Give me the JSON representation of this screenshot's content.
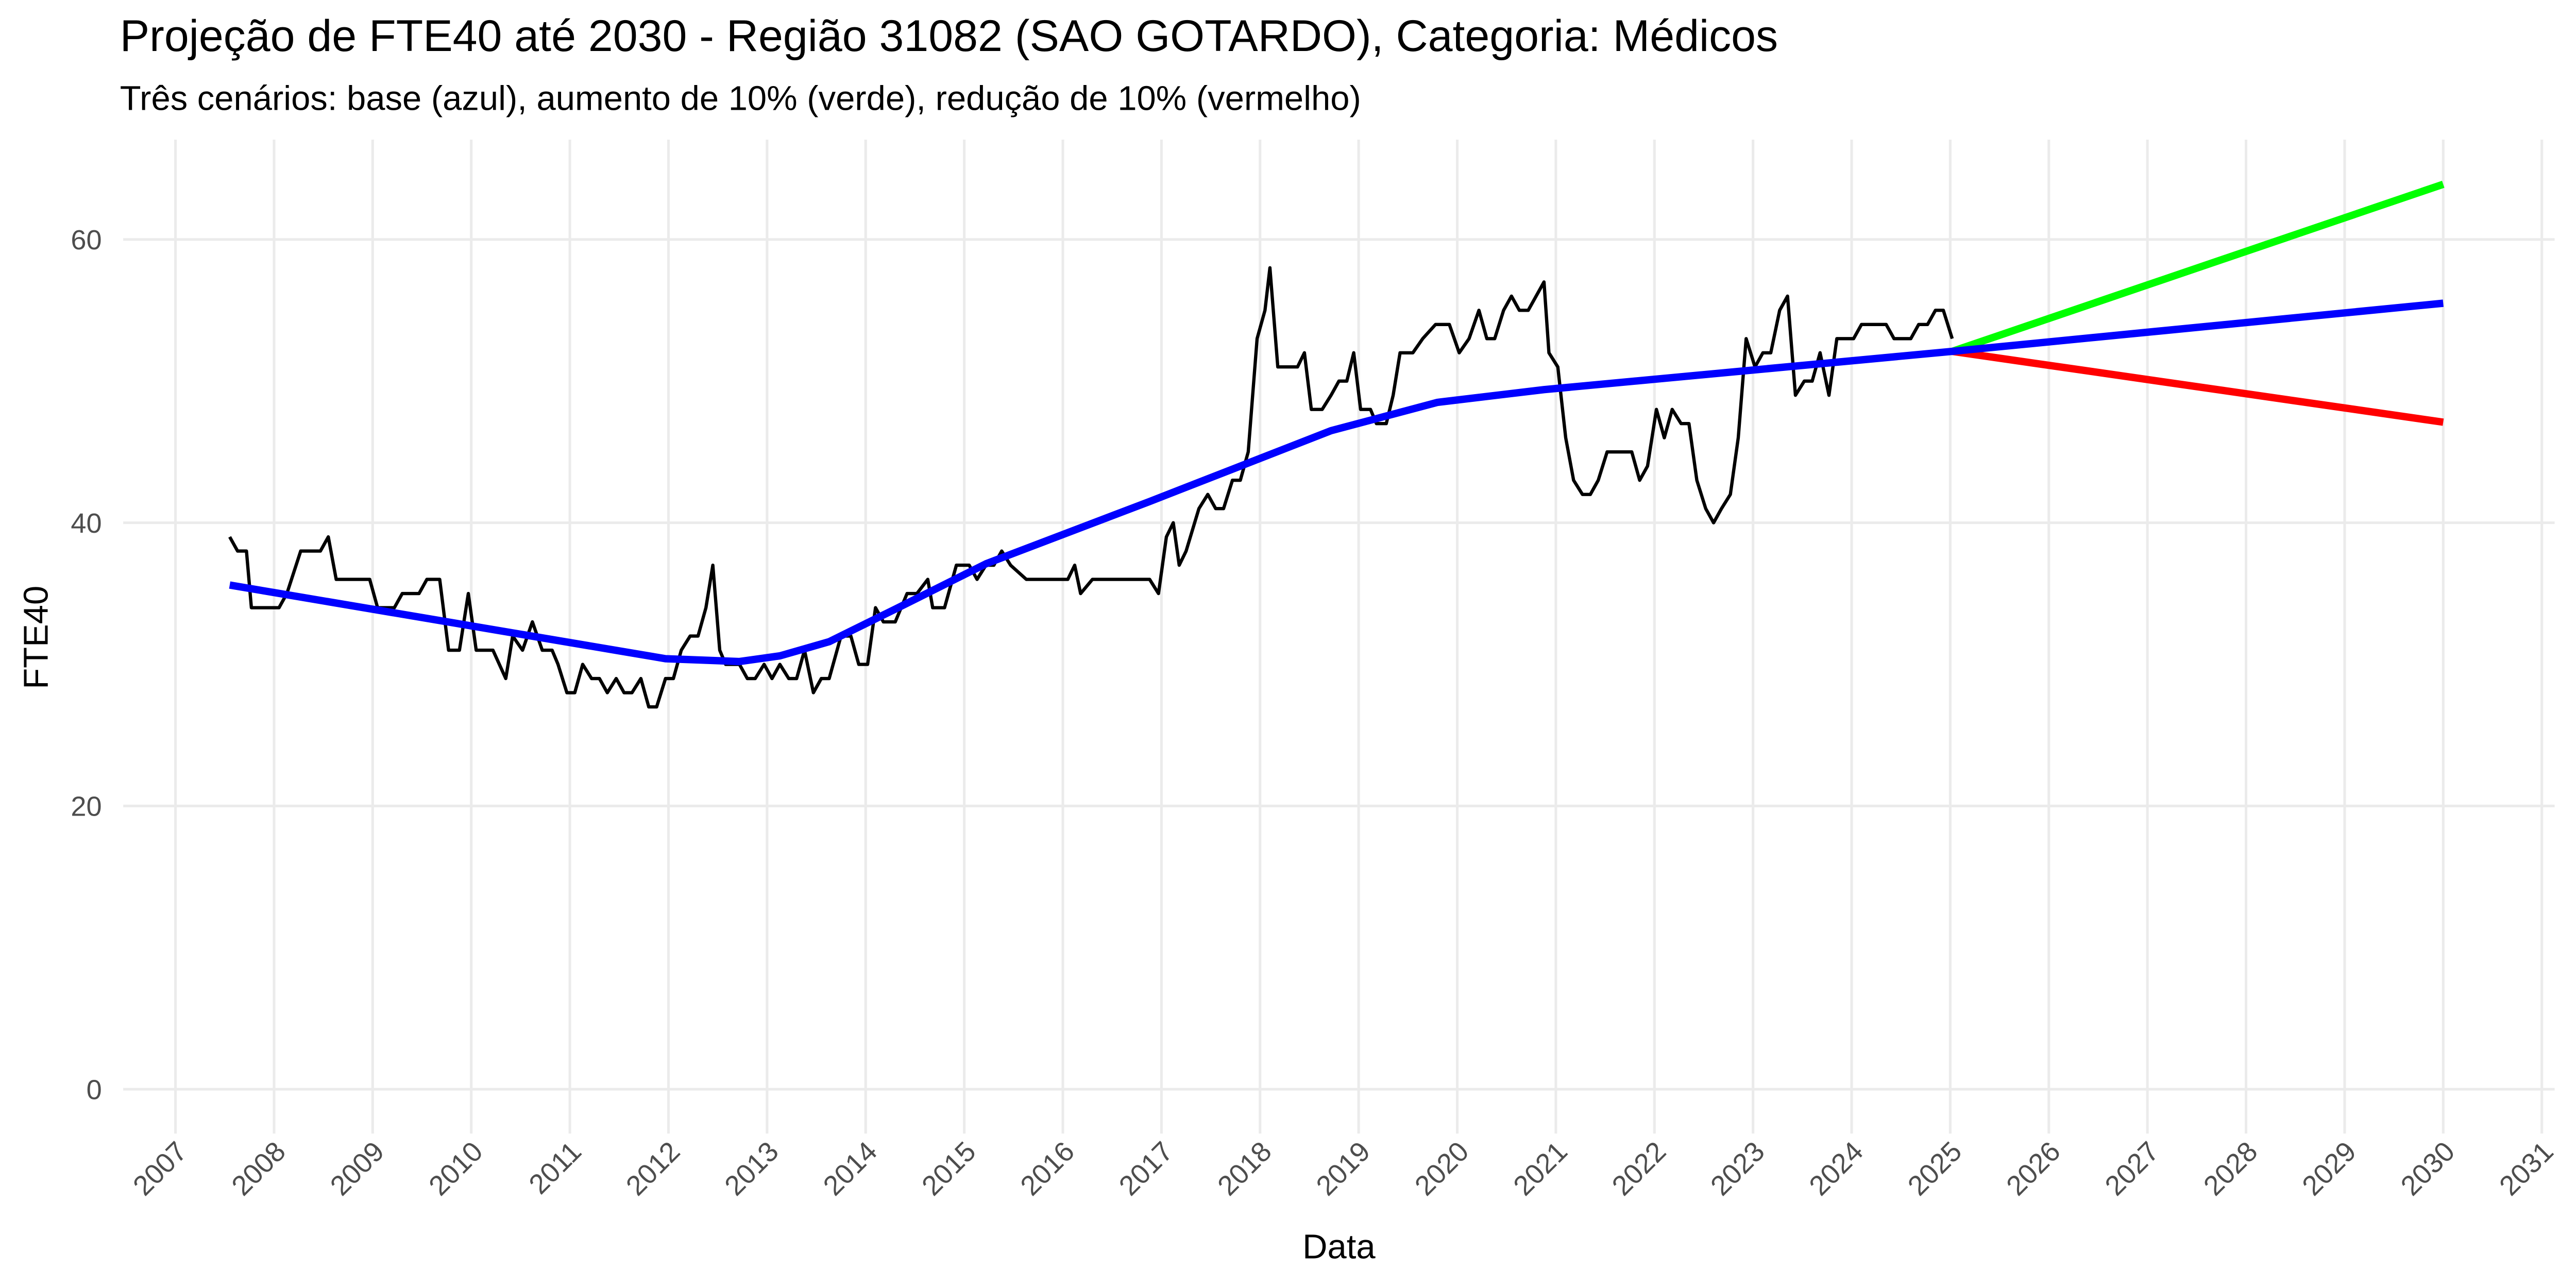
{
  "chart_data": {
    "type": "line",
    "title": "Projeção de FTE40 até 2030 - Região 31082 (SAO GOTARDO), Categoria: Médicos",
    "subtitle": "Três cenários: base (azul), aumento de 10% (verde), redução de 10% (vermelho)",
    "x_label": "Data",
    "y_label": "FTE40",
    "xlim": [
      2006.47,
      2031.13
    ],
    "xticks": [
      2007,
      2008,
      2009,
      2010,
      2011,
      2012,
      2013,
      2014,
      2015,
      2016,
      2017,
      2018,
      2019,
      2020,
      2021,
      2022,
      2023,
      2024,
      2025,
      2026,
      2027,
      2028,
      2029,
      2030,
      2031
    ],
    "ylim": [
      -3.13,
      67.05
    ],
    "yticks": [
      0,
      20,
      40,
      60
    ],
    "grid": true,
    "series": [
      {
        "color": "#000000",
        "x": [
          2007.55,
          2007.63,
          2007.72,
          2007.77,
          2008.05,
          2008.13,
          2008.27,
          2008.47,
          2008.55,
          2008.63,
          2008.97,
          2009.05,
          2009.22,
          2009.3,
          2009.47,
          2009.55,
          2009.68,
          2009.77,
          2009.88,
          2009.97,
          2010.05,
          2010.22,
          2010.35,
          2010.42,
          2010.52,
          2010.62,
          2010.72,
          2010.82,
          2010.88,
          2010.97,
          2011.05,
          2011.13,
          2011.22,
          2011.3,
          2011.38,
          2011.47,
          2011.55,
          2011.63,
          2011.72,
          2011.8,
          2011.88,
          2011.97,
          2012.05,
          2012.13,
          2012.22,
          2012.3,
          2012.38,
          2012.45,
          2012.52,
          2012.58,
          2012.72,
          2012.8,
          2012.88,
          2012.97,
          2013.05,
          2013.13,
          2013.22,
          2013.3,
          2013.38,
          2013.47,
          2013.55,
          2013.63,
          2013.75,
          2013.85,
          2013.93,
          2014.02,
          2014.1,
          2014.18,
          2014.3,
          2014.42,
          2014.52,
          2014.63,
          2014.68,
          2014.8,
          2014.92,
          2015.05,
          2015.13,
          2015.22,
          2015.3,
          2015.38,
          2015.47,
          2015.63,
          2015.72,
          2016.05,
          2016.12,
          2016.18,
          2016.3,
          2016.88,
          2016.97,
          2017.05,
          2017.12,
          2017.18,
          2017.25,
          2017.38,
          2017.47,
          2017.55,
          2017.63,
          2017.72,
          2017.8,
          2017.88,
          2017.97,
          2018.05,
          2018.1,
          2018.18,
          2018.38,
          2018.45,
          2018.52,
          2018.63,
          2018.72,
          2018.8,
          2018.88,
          2018.95,
          2019.02,
          2019.12,
          2019.18,
          2019.28,
          2019.35,
          2019.42,
          2019.55,
          2019.65,
          2019.78,
          2019.92,
          2020.02,
          2020.12,
          2020.22,
          2020.3,
          2020.38,
          2020.47,
          2020.55,
          2020.63,
          2020.72,
          2020.8,
          2020.88,
          2020.93,
          2021.02,
          2021.1,
          2021.18,
          2021.27,
          2021.35,
          2021.43,
          2021.52,
          2021.77,
          2021.85,
          2021.93,
          2022.02,
          2022.1,
          2022.18,
          2022.27,
          2022.35,
          2022.43,
          2022.52,
          2022.6,
          2022.68,
          2022.77,
          2022.85,
          2022.93,
          2023.02,
          2023.1,
          2023.18,
          2023.27,
          2023.35,
          2023.43,
          2023.52,
          2023.6,
          2023.68,
          2023.77,
          2023.85,
          2024.02,
          2024.1,
          2024.35,
          2024.43,
          2024.6,
          2024.68,
          2024.77,
          2024.85,
          2024.93,
          2025.02
        ],
        "values": [
          39,
          38,
          38,
          34,
          34,
          35,
          38,
          38,
          39,
          36,
          36,
          34,
          34,
          35,
          35,
          36,
          36,
          31,
          31,
          35,
          31,
          31,
          29,
          32,
          31,
          33,
          31,
          31,
          30,
          28,
          28,
          30,
          29,
          29,
          28,
          29,
          28,
          28,
          29,
          27,
          27,
          29,
          29,
          31,
          32,
          32,
          34,
          37,
          31,
          30,
          30,
          29,
          29,
          30,
          29,
          30,
          29,
          29,
          31,
          28,
          29,
          29,
          32,
          32,
          30,
          30,
          34,
          33,
          33,
          35,
          35,
          36,
          34,
          34,
          37,
          37,
          36,
          37,
          37,
          38,
          37,
          36,
          36,
          36,
          37,
          35,
          36,
          36,
          35,
          39,
          40,
          37,
          38,
          41,
          42,
          41,
          41,
          43,
          43,
          45,
          53,
          55,
          58,
          51,
          51,
          52,
          48,
          48,
          49,
          50,
          50,
          52,
          48,
          48,
          47,
          47,
          49,
          52,
          52,
          53,
          54,
          54,
          52,
          53,
          55,
          53,
          53,
          55,
          56,
          55,
          55,
          56,
          57,
          52,
          51,
          46,
          43,
          42,
          42,
          43,
          45,
          45,
          43,
          44,
          48,
          46,
          48,
          47,
          47,
          43,
          41,
          40,
          41,
          42,
          46,
          53,
          51,
          52,
          52,
          55,
          56,
          49,
          50,
          50,
          52,
          49,
          53,
          53,
          54,
          54,
          53,
          53,
          54,
          54,
          55,
          55,
          53
        ]
      },
      {
        "color": "#ff0000",
        "x": [
          2025.02,
          2030.0
        ],
        "values": [
          52.1,
          47.1
        ]
      },
      {
        "color": "#00ff00",
        "x": [
          2025.02,
          2030.0
        ],
        "values": [
          52.1,
          63.9
        ]
      },
      {
        "color": "#0000ff",
        "x": [
          2007.55,
          2011.97,
          2012.72,
          2013.13,
          2013.63,
          2014.3,
          2015.22,
          2016.88,
          2018.72,
          2019.8,
          2020.88,
          2025.02,
          2030.0
        ],
        "values": [
          35.6,
          30.4,
          30.2,
          30.6,
          31.6,
          33.9,
          37.1,
          41.5,
          46.5,
          48.5,
          49.4,
          52.1,
          55.5
        ]
      }
    ]
  }
}
